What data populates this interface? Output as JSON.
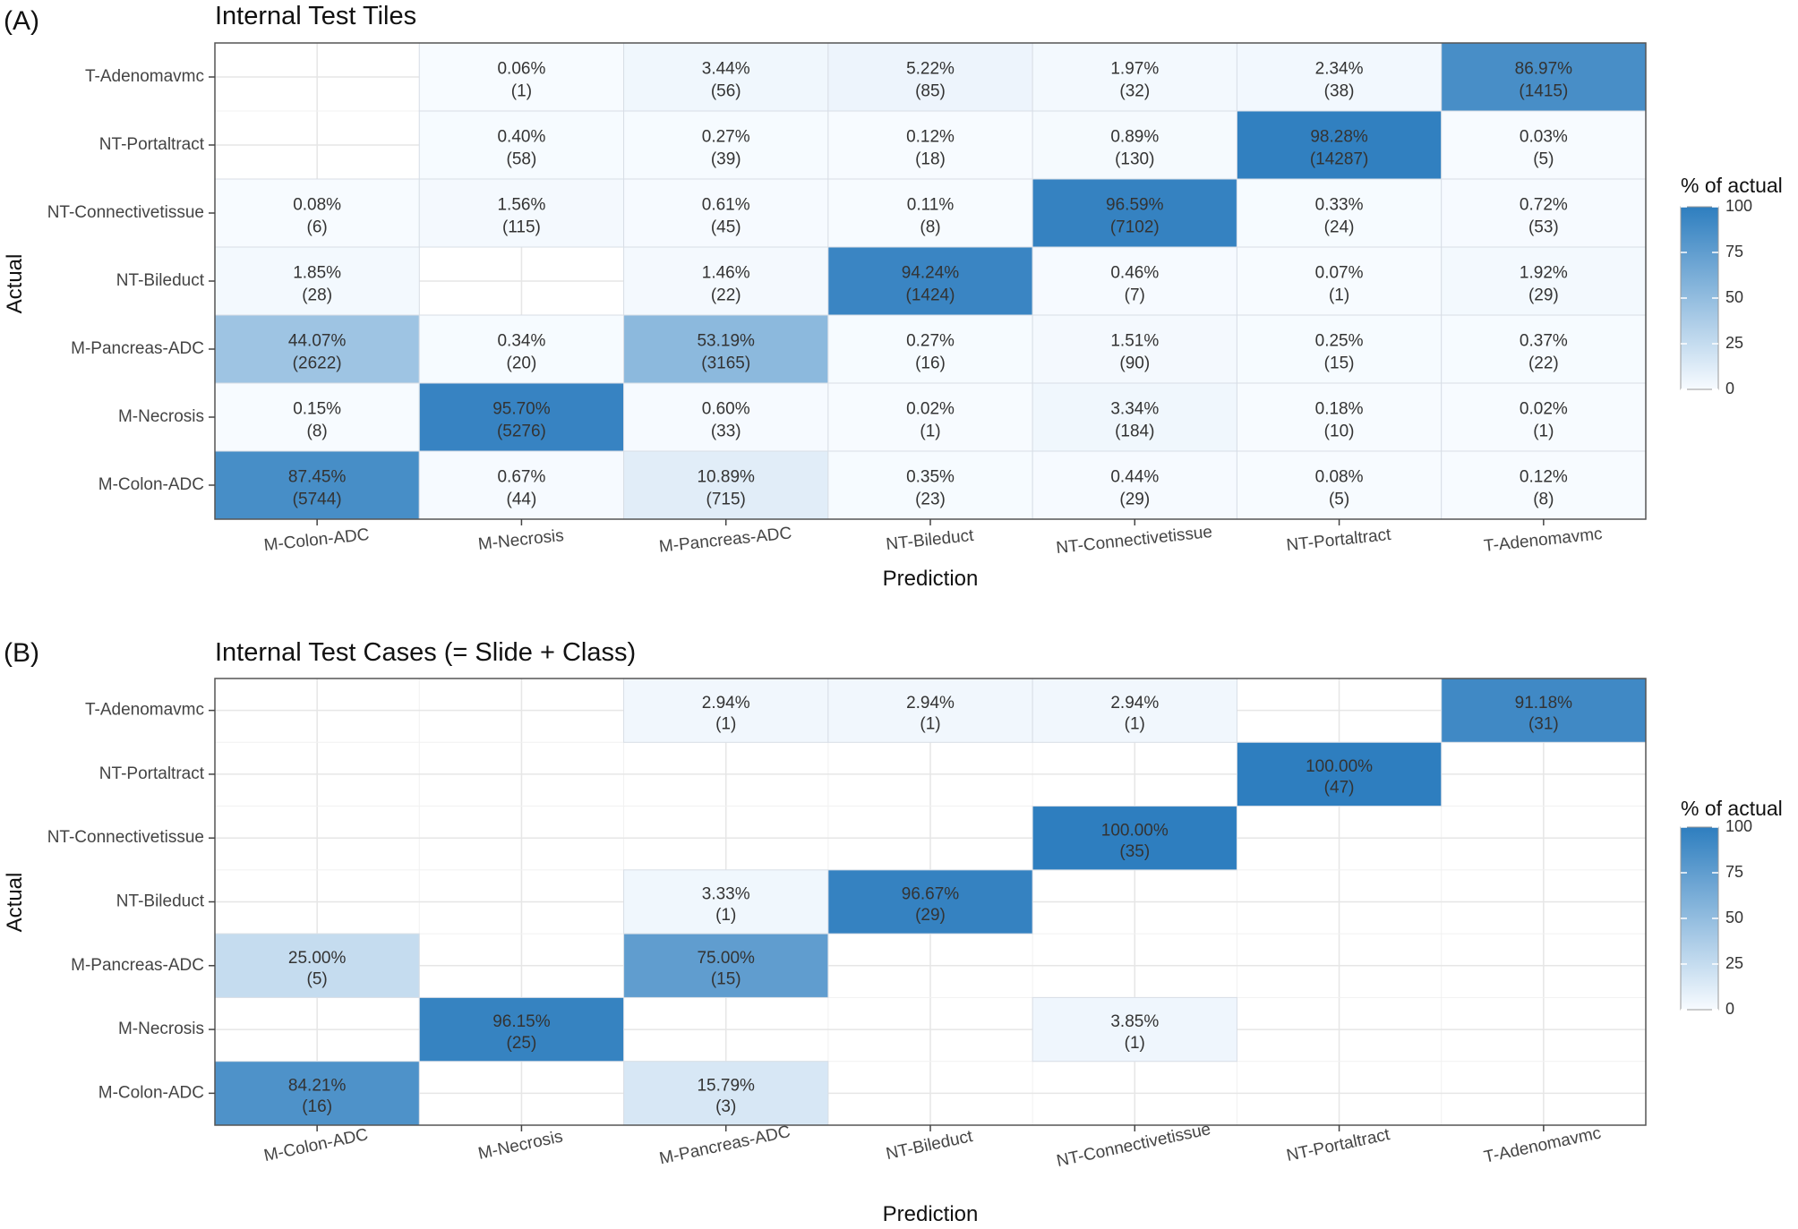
{
  "chart_data": [
    {
      "type": "heatmap",
      "panel_label": "(A)",
      "title": "Internal Test Tiles",
      "xlabel": "Prediction",
      "ylabel": "Actual",
      "x_categories": [
        "M-Colon-ADC",
        "M-Necrosis",
        "M-Pancreas-ADC",
        "NT-Bileduct",
        "NT-Connectivetissue",
        "NT-Portaltract",
        "T-Adenomavmc"
      ],
      "y_categories": [
        "M-Colon-ADC",
        "M-Necrosis",
        "M-Pancreas-ADC",
        "NT-Bileduct",
        "NT-Connectivetissue",
        "NT-Portaltract",
        "T-Adenomavmc"
      ],
      "legend": {
        "title": "% of actual",
        "ticks": [
          "0",
          "25",
          "50",
          "75",
          "100"
        ],
        "range": [
          0,
          100
        ],
        "placement": "right"
      },
      "cells": [
        {
          "actual": "T-Adenomavmc",
          "predicted": "M-Necrosis",
          "pct": 0.06,
          "pct_label": "0.06%",
          "count_label": "(1)"
        },
        {
          "actual": "T-Adenomavmc",
          "predicted": "M-Pancreas-ADC",
          "pct": 3.44,
          "pct_label": "3.44%",
          "count_label": "(56)"
        },
        {
          "actual": "T-Adenomavmc",
          "predicted": "NT-Bileduct",
          "pct": 5.22,
          "pct_label": "5.22%",
          "count_label": "(85)"
        },
        {
          "actual": "T-Adenomavmc",
          "predicted": "NT-Connectivetissue",
          "pct": 1.97,
          "pct_label": "1.97%",
          "count_label": "(32)"
        },
        {
          "actual": "T-Adenomavmc",
          "predicted": "NT-Portaltract",
          "pct": 2.34,
          "pct_label": "2.34%",
          "count_label": "(38)"
        },
        {
          "actual": "T-Adenomavmc",
          "predicted": "T-Adenomavmc",
          "pct": 86.97,
          "pct_label": "86.97%",
          "count_label": "(1415)"
        },
        {
          "actual": "NT-Portaltract",
          "predicted": "M-Necrosis",
          "pct": 0.4,
          "pct_label": "0.40%",
          "count_label": "(58)"
        },
        {
          "actual": "NT-Portaltract",
          "predicted": "M-Pancreas-ADC",
          "pct": 0.27,
          "pct_label": "0.27%",
          "count_label": "(39)"
        },
        {
          "actual": "NT-Portaltract",
          "predicted": "NT-Bileduct",
          "pct": 0.12,
          "pct_label": "0.12%",
          "count_label": "(18)"
        },
        {
          "actual": "NT-Portaltract",
          "predicted": "NT-Connectivetissue",
          "pct": 0.89,
          "pct_label": "0.89%",
          "count_label": "(130)"
        },
        {
          "actual": "NT-Portaltract",
          "predicted": "NT-Portaltract",
          "pct": 98.28,
          "pct_label": "98.28%",
          "count_label": "(14287)"
        },
        {
          "actual": "NT-Portaltract",
          "predicted": "T-Adenomavmc",
          "pct": 0.03,
          "pct_label": "0.03%",
          "count_label": "(5)"
        },
        {
          "actual": "NT-Connectivetissue",
          "predicted": "M-Colon-ADC",
          "pct": 0.08,
          "pct_label": "0.08%",
          "count_label": "(6)"
        },
        {
          "actual": "NT-Connectivetissue",
          "predicted": "M-Necrosis",
          "pct": 1.56,
          "pct_label": "1.56%",
          "count_label": "(115)"
        },
        {
          "actual": "NT-Connectivetissue",
          "predicted": "M-Pancreas-ADC",
          "pct": 0.61,
          "pct_label": "0.61%",
          "count_label": "(45)"
        },
        {
          "actual": "NT-Connectivetissue",
          "predicted": "NT-Bileduct",
          "pct": 0.11,
          "pct_label": "0.11%",
          "count_label": "(8)"
        },
        {
          "actual": "NT-Connectivetissue",
          "predicted": "NT-Connectivetissue",
          "pct": 96.59,
          "pct_label": "96.59%",
          "count_label": "(7102)"
        },
        {
          "actual": "NT-Connectivetissue",
          "predicted": "NT-Portaltract",
          "pct": 0.33,
          "pct_label": "0.33%",
          "count_label": "(24)"
        },
        {
          "actual": "NT-Connectivetissue",
          "predicted": "T-Adenomavmc",
          "pct": 0.72,
          "pct_label": "0.72%",
          "count_label": "(53)"
        },
        {
          "actual": "NT-Bileduct",
          "predicted": "M-Colon-ADC",
          "pct": 1.85,
          "pct_label": "1.85%",
          "count_label": "(28)"
        },
        {
          "actual": "NT-Bileduct",
          "predicted": "M-Pancreas-ADC",
          "pct": 1.46,
          "pct_label": "1.46%",
          "count_label": "(22)"
        },
        {
          "actual": "NT-Bileduct",
          "predicted": "NT-Bileduct",
          "pct": 94.24,
          "pct_label": "94.24%",
          "count_label": "(1424)"
        },
        {
          "actual": "NT-Bileduct",
          "predicted": "NT-Connectivetissue",
          "pct": 0.46,
          "pct_label": "0.46%",
          "count_label": "(7)"
        },
        {
          "actual": "NT-Bileduct",
          "predicted": "NT-Portaltract",
          "pct": 0.07,
          "pct_label": "0.07%",
          "count_label": "(1)"
        },
        {
          "actual": "NT-Bileduct",
          "predicted": "T-Adenomavmc",
          "pct": 1.92,
          "pct_label": "1.92%",
          "count_label": "(29)"
        },
        {
          "actual": "M-Pancreas-ADC",
          "predicted": "M-Colon-ADC",
          "pct": 44.07,
          "pct_label": "44.07%",
          "count_label": "(2622)"
        },
        {
          "actual": "M-Pancreas-ADC",
          "predicted": "M-Necrosis",
          "pct": 0.34,
          "pct_label": "0.34%",
          "count_label": "(20)"
        },
        {
          "actual": "M-Pancreas-ADC",
          "predicted": "M-Pancreas-ADC",
          "pct": 53.19,
          "pct_label": "53.19%",
          "count_label": "(3165)"
        },
        {
          "actual": "M-Pancreas-ADC",
          "predicted": "NT-Bileduct",
          "pct": 0.27,
          "pct_label": "0.27%",
          "count_label": "(16)"
        },
        {
          "actual": "M-Pancreas-ADC",
          "predicted": "NT-Connectivetissue",
          "pct": 1.51,
          "pct_label": "1.51%",
          "count_label": "(90)"
        },
        {
          "actual": "M-Pancreas-ADC",
          "predicted": "NT-Portaltract",
          "pct": 0.25,
          "pct_label": "0.25%",
          "count_label": "(15)"
        },
        {
          "actual": "M-Pancreas-ADC",
          "predicted": "T-Adenomavmc",
          "pct": 0.37,
          "pct_label": "0.37%",
          "count_label": "(22)"
        },
        {
          "actual": "M-Necrosis",
          "predicted": "M-Colon-ADC",
          "pct": 0.15,
          "pct_label": "0.15%",
          "count_label": "(8)"
        },
        {
          "actual": "M-Necrosis",
          "predicted": "M-Necrosis",
          "pct": 95.7,
          "pct_label": "95.70%",
          "count_label": "(5276)"
        },
        {
          "actual": "M-Necrosis",
          "predicted": "M-Pancreas-ADC",
          "pct": 0.6,
          "pct_label": "0.60%",
          "count_label": "(33)"
        },
        {
          "actual": "M-Necrosis",
          "predicted": "NT-Bileduct",
          "pct": 0.02,
          "pct_label": "0.02%",
          "count_label": "(1)"
        },
        {
          "actual": "M-Necrosis",
          "predicted": "NT-Connectivetissue",
          "pct": 3.34,
          "pct_label": "3.34%",
          "count_label": "(184)"
        },
        {
          "actual": "M-Necrosis",
          "predicted": "NT-Portaltract",
          "pct": 0.18,
          "pct_label": "0.18%",
          "count_label": "(10)"
        },
        {
          "actual": "M-Necrosis",
          "predicted": "T-Adenomavmc",
          "pct": 0.02,
          "pct_label": "0.02%",
          "count_label": "(1)"
        },
        {
          "actual": "M-Colon-ADC",
          "predicted": "M-Colon-ADC",
          "pct": 87.45,
          "pct_label": "87.45%",
          "count_label": "(5744)"
        },
        {
          "actual": "M-Colon-ADC",
          "predicted": "M-Necrosis",
          "pct": 0.67,
          "pct_label": "0.67%",
          "count_label": "(44)"
        },
        {
          "actual": "M-Colon-ADC",
          "predicted": "M-Pancreas-ADC",
          "pct": 10.89,
          "pct_label": "10.89%",
          "count_label": "(715)"
        },
        {
          "actual": "M-Colon-ADC",
          "predicted": "NT-Bileduct",
          "pct": 0.35,
          "pct_label": "0.35%",
          "count_label": "(23)"
        },
        {
          "actual": "M-Colon-ADC",
          "predicted": "NT-Connectivetissue",
          "pct": 0.44,
          "pct_label": "0.44%",
          "count_label": "(29)"
        },
        {
          "actual": "M-Colon-ADC",
          "predicted": "NT-Portaltract",
          "pct": 0.08,
          "pct_label": "0.08%",
          "count_label": "(5)"
        },
        {
          "actual": "M-Colon-ADC",
          "predicted": "T-Adenomavmc",
          "pct": 0.12,
          "pct_label": "0.12%",
          "count_label": "(8)"
        }
      ]
    },
    {
      "type": "heatmap",
      "panel_label": "(B)",
      "title": "Internal Test Cases (= Slide + Class)",
      "xlabel": "Prediction",
      "ylabel": "Actual",
      "x_categories": [
        "M-Colon-ADC",
        "M-Necrosis",
        "M-Pancreas-ADC",
        "NT-Bileduct",
        "NT-Connectivetissue",
        "NT-Portaltract",
        "T-Adenomavmc"
      ],
      "y_categories": [
        "M-Colon-ADC",
        "M-Necrosis",
        "M-Pancreas-ADC",
        "NT-Bileduct",
        "NT-Connectivetissue",
        "NT-Portaltract",
        "T-Adenomavmc"
      ],
      "legend": {
        "title": "% of actual",
        "ticks": [
          "0",
          "25",
          "50",
          "75",
          "100"
        ],
        "range": [
          0,
          100
        ],
        "placement": "right"
      },
      "cells": [
        {
          "actual": "T-Adenomavmc",
          "predicted": "M-Pancreas-ADC",
          "pct": 2.94,
          "pct_label": "2.94%",
          "count_label": "(1)"
        },
        {
          "actual": "T-Adenomavmc",
          "predicted": "NT-Bileduct",
          "pct": 2.94,
          "pct_label": "2.94%",
          "count_label": "(1)"
        },
        {
          "actual": "T-Adenomavmc",
          "predicted": "NT-Connectivetissue",
          "pct": 2.94,
          "pct_label": "2.94%",
          "count_label": "(1)"
        },
        {
          "actual": "T-Adenomavmc",
          "predicted": "T-Adenomavmc",
          "pct": 91.18,
          "pct_label": "91.18%",
          "count_label": "(31)"
        },
        {
          "actual": "NT-Portaltract",
          "predicted": "NT-Portaltract",
          "pct": 100.0,
          "pct_label": "100.00%",
          "count_label": "(47)"
        },
        {
          "actual": "NT-Connectivetissue",
          "predicted": "NT-Connectivetissue",
          "pct": 100.0,
          "pct_label": "100.00%",
          "count_label": "(35)"
        },
        {
          "actual": "NT-Bileduct",
          "predicted": "M-Pancreas-ADC",
          "pct": 3.33,
          "pct_label": "3.33%",
          "count_label": "(1)"
        },
        {
          "actual": "NT-Bileduct",
          "predicted": "NT-Bileduct",
          "pct": 96.67,
          "pct_label": "96.67%",
          "count_label": "(29)"
        },
        {
          "actual": "M-Pancreas-ADC",
          "predicted": "M-Colon-ADC",
          "pct": 25.0,
          "pct_label": "25.00%",
          "count_label": "(5)"
        },
        {
          "actual": "M-Pancreas-ADC",
          "predicted": "M-Pancreas-ADC",
          "pct": 75.0,
          "pct_label": "75.00%",
          "count_label": "(15)"
        },
        {
          "actual": "M-Necrosis",
          "predicted": "M-Necrosis",
          "pct": 96.15,
          "pct_label": "96.15%",
          "count_label": "(25)"
        },
        {
          "actual": "M-Necrosis",
          "predicted": "NT-Connectivetissue",
          "pct": 3.85,
          "pct_label": "3.85%",
          "count_label": "(1)"
        },
        {
          "actual": "M-Colon-ADC",
          "predicted": "M-Colon-ADC",
          "pct": 84.21,
          "pct_label": "84.21%",
          "count_label": "(16)"
        },
        {
          "actual": "M-Colon-ADC",
          "predicted": "M-Pancreas-ADC",
          "pct": 15.79,
          "pct_label": "15.79%",
          "count_label": "(3)"
        }
      ]
    }
  ],
  "colors": {
    "low": "#f7fbff",
    "high": "#2e7ebf",
    "grid": "#e6e6e6",
    "panel_border": "#555555"
  }
}
